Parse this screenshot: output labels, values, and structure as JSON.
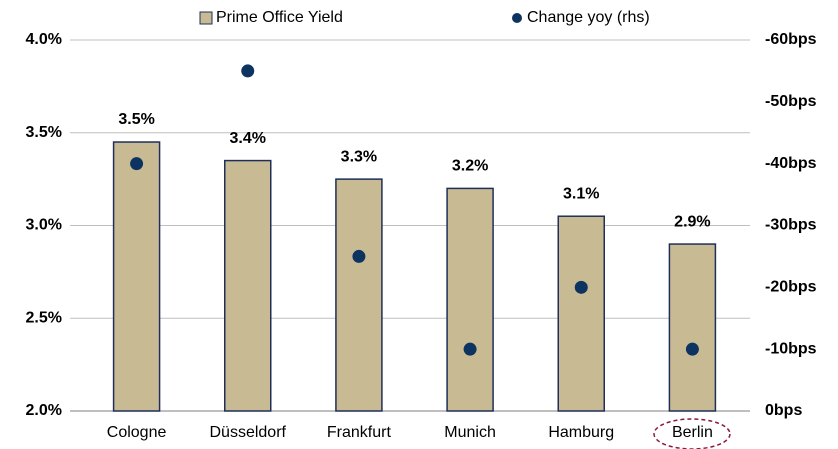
{
  "chart_data": {
    "type": "bar",
    "categories": [
      "Cologne",
      "Düsseldorf",
      "Frankfurt",
      "Munich",
      "Hamburg",
      "Berlin"
    ],
    "series": [
      {
        "name": "Prime Office Yield",
        "type": "bar",
        "color": "#c8bb93",
        "values": [
          3.45,
          3.35,
          3.25,
          3.2,
          3.05,
          2.9
        ],
        "value_labels": [
          "3.5%",
          "3.4%",
          "3.3%",
          "3.2%",
          "3.1%",
          "2.9%"
        ]
      },
      {
        "name": "Change yoy (rhs)",
        "type": "scatter",
        "axis": "y2",
        "color": "#0d3460",
        "values": [
          -40,
          -55,
          -25,
          -10,
          -20,
          -10
        ]
      }
    ],
    "ylim": [
      2.0,
      4.0
    ],
    "yticks": [
      {
        "value": 2.0,
        "label": "2.0%"
      },
      {
        "value": 2.5,
        "label": "2.5%"
      },
      {
        "value": 3.0,
        "label": "3.0%"
      },
      {
        "value": 3.5,
        "label": "3.5%"
      },
      {
        "value": 4.0,
        "label": "4.0%"
      }
    ],
    "y2lim": [
      0,
      -60
    ],
    "y2ticks": [
      {
        "value": 0,
        "label": "0bps"
      },
      {
        "value": -10,
        "label": "-10bps"
      },
      {
        "value": -20,
        "label": "-20bps"
      },
      {
        "value": -30,
        "label": "-30bps"
      },
      {
        "value": -40,
        "label": "-40bps"
      },
      {
        "value": -50,
        "label": "-50bps"
      },
      {
        "value": -60,
        "label": "-60bps"
      }
    ],
    "grid": true,
    "legend": "top"
  }
}
